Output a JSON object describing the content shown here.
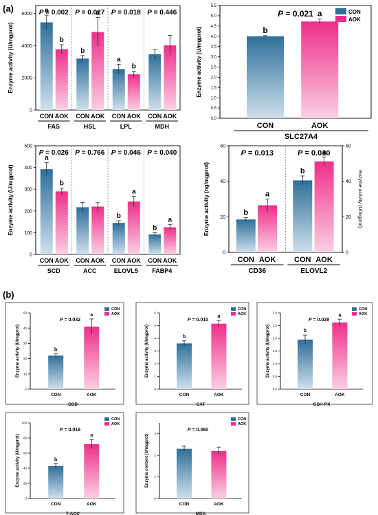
{
  "panels": [
    {
      "id": "a",
      "label": "(a)"
    },
    {
      "id": "b",
      "label": "(b)"
    }
  ],
  "chart_data": [
    {
      "type": "bar",
      "ylabel": "Enzyme activity (U/mgprot)",
      "ylim": [
        0,
        6500
      ],
      "yticks": [
        "0",
        "2000",
        "4000",
        "6000"
      ],
      "series_names": [
        "CON",
        "AOK"
      ],
      "legend": "none",
      "groups": [
        {
          "name": "FAS",
          "p": "P = 0.002",
          "values": [
            5450,
            3780
          ],
          "errors": [
            450,
            280
          ],
          "letters": [
            "a",
            "b"
          ]
        },
        {
          "name": "HSL",
          "p": "P = 0.027",
          "values": [
            3200,
            4850
          ],
          "errors": [
            180,
            900
          ],
          "letters": [
            "b",
            "a"
          ]
        },
        {
          "name": "LPL",
          "p": "P = 0.018",
          "values": [
            2550,
            2220
          ],
          "errors": [
            300,
            200
          ],
          "letters": [
            "a",
            "b"
          ]
        },
        {
          "name": "MDH",
          "p": "P = 0.446",
          "values": [
            3470,
            4020
          ],
          "errors": [
            280,
            620
          ],
          "letters": [
            "",
            ""
          ]
        }
      ]
    },
    {
      "type": "bar",
      "ylabel": "Enzyme activity (U/mgprot)",
      "ylim": [
        0,
        5.5
      ],
      "yticks": [
        "0.0",
        "0.5",
        "1.0",
        "1.5",
        "2.0",
        "2.5",
        "3.0",
        "3.5",
        "4.0",
        "4.5",
        "5.0",
        "5.5"
      ],
      "series_names": [
        "CON",
        "AOK"
      ],
      "legend": "top-right",
      "groups": [
        {
          "name": "SLC27A4",
          "p": "P = 0.021",
          "values": [
            4.0,
            4.72
          ],
          "errors": [
            0.03,
            0.12
          ],
          "letters": [
            "b",
            "a"
          ]
        }
      ]
    },
    {
      "type": "bar",
      "ylabel": "Enzyme activity (U/mgprot)",
      "ylim": [
        0,
        500
      ],
      "yticks": [
        "0",
        "100",
        "200",
        "300",
        "400",
        "500"
      ],
      "series_names": [
        "CON",
        "AOK"
      ],
      "legend": "none",
      "groups": [
        {
          "name": "SCD",
          "p": "P = 0.026",
          "values": [
            392,
            290
          ],
          "errors": [
            30,
            15
          ],
          "letters": [
            "a",
            "b"
          ]
        },
        {
          "name": "ACC",
          "p": "P = 0.766",
          "values": [
            217,
            220
          ],
          "errors": [
            22,
            18
          ],
          "letters": [
            "",
            ""
          ]
        },
        {
          "name": "ELOVL5",
          "p": "P = 0.046",
          "values": [
            145,
            243
          ],
          "errors": [
            10,
            25
          ],
          "letters": [
            "b",
            "a"
          ]
        },
        {
          "name": "FABP4",
          "p": "P = 0.040",
          "values": [
            92,
            125
          ],
          "errors": [
            8,
            12
          ],
          "letters": [
            "b",
            "a"
          ]
        }
      ]
    },
    {
      "type": "bar",
      "ylabel": "Enzyme activity (ng/mgprot)",
      "ylabel_right": "Enzyme activity (U/mgprot)",
      "ylim": [
        0,
        60
      ],
      "yticks": [
        "0",
        "20",
        "40",
        "60"
      ],
      "yticks_right": [
        "0",
        "20",
        "40",
        "60"
      ],
      "series_names": [
        "CON",
        "AOK"
      ],
      "legend": "none",
      "groups": [
        {
          "name": "CD36",
          "p": "P = 0.013",
          "values": [
            18.5,
            26.5
          ],
          "errors": [
            1,
            3.5
          ],
          "letters": [
            "b",
            "a"
          ]
        },
        {
          "name": "ELOVL2",
          "p": "P = 0.010",
          "values": [
            40.5,
            51.2
          ],
          "errors": [
            2.5,
            2.5
          ],
          "letters": [
            "b",
            "a"
          ]
        }
      ]
    },
    {
      "type": "bar",
      "title": "SOD",
      "p": "P = 0.032",
      "ylabel": "Enzyme activity (U/mgprot)",
      "ylim": [
        0,
        50
      ],
      "yticks": [
        "0",
        "10",
        "20",
        "30",
        "40",
        "50"
      ],
      "categories": [
        "CON",
        "AOK"
      ],
      "values": [
        22,
        41
      ],
      "errors": [
        1.2,
        5
      ],
      "letters": [
        "b",
        "a"
      ],
      "legend": "top-right"
    },
    {
      "type": "bar",
      "title": "CAT",
      "p": "P = 0.010",
      "ylabel": "Enzyme activity (U/mgprot)",
      "ylim": [
        0,
        6
      ],
      "yticks": [
        "0",
        "1",
        "2",
        "3",
        "4",
        "5",
        "6"
      ],
      "categories": [
        "CON",
        "AOK"
      ],
      "values": [
        3.6,
        5.15
      ],
      "errors": [
        0.2,
        0.25
      ],
      "letters": [
        "b",
        "a"
      ],
      "legend": "top-right"
    },
    {
      "type": "bar",
      "title": "GSH-PX",
      "p": "P = 0.029",
      "ylabel": "Enzyme activity (U/mgprot)",
      "ylim": [
        0,
        3.0
      ],
      "yticks": [
        "0.0",
        "0.5",
        "1.0",
        "1.5",
        "2.0",
        "2.5",
        "3.0"
      ],
      "categories": [
        "CON",
        "AOK"
      ],
      "values": [
        1.95,
        2.62
      ],
      "errors": [
        0.18,
        0.13
      ],
      "letters": [
        "b",
        "a"
      ],
      "legend": "top-right"
    },
    {
      "type": "bar",
      "title": "T-AOC",
      "p": "P = 0.016",
      "ylabel": "Enzyme activity (U/mgprot)",
      "ylim": [
        0,
        100
      ],
      "yticks": [
        "0",
        "20",
        "40",
        "60",
        "80",
        "100"
      ],
      "categories": [
        "CON",
        "AOK"
      ],
      "values": [
        43,
        72
      ],
      "errors": [
        3,
        6
      ],
      "letters": [
        "b",
        "a"
      ],
      "legend": "top-right"
    },
    {
      "type": "bar",
      "title": "MDA",
      "p": "P = 0.460",
      "ylabel": "Enzyme content (U/mgprot)",
      "ylim": [
        0,
        3.5
      ],
      "yticks": [
        "0",
        "1",
        "2",
        "3"
      ],
      "categories": [
        "CON",
        "AOK"
      ],
      "values": [
        2.3,
        2.2
      ],
      "errors": [
        0.12,
        0.18
      ],
      "letters": [
        "",
        ""
      ],
      "legend": "top-right"
    }
  ],
  "colors": {
    "con_top": "#2f6f99",
    "con_bottom": "#cfe0ee",
    "aok_top": "#ee2f8a",
    "aok_bottom": "#fbd0e4",
    "axis": "#000000",
    "divider": "#888888"
  }
}
